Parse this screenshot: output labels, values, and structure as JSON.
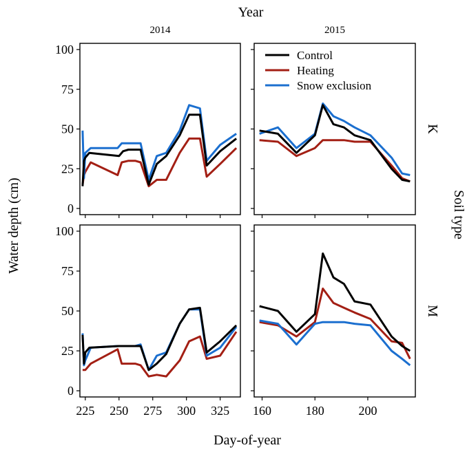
{
  "chart_data": {
    "type": "line",
    "title": "",
    "top_label": "Year",
    "right_label": "Soil type",
    "xlabel": "Day-of-year",
    "ylabel": "Water depth (cm)",
    "ylim": [
      0,
      100
    ],
    "yticks": [
      0,
      25,
      50,
      75,
      100
    ],
    "colors": {
      "Control": "#000000",
      "Heating": "#a31f14",
      "Snow exclusion": "#1b6fcf"
    },
    "legend": {
      "position": "top-right of 2015/K panel",
      "entries": [
        "Control",
        "Heating",
        "Snow exclusion"
      ]
    },
    "columns": [
      {
        "label": "2014",
        "xlim": [
          221,
          340
        ],
        "xticks": [
          225,
          250,
          275,
          300,
          325
        ]
      },
      {
        "label": "2015",
        "xlim": [
          157,
          218
        ],
        "xticks": [
          160,
          180,
          200
        ]
      }
    ],
    "rows": [
      {
        "label": "K"
      },
      {
        "label": "M"
      }
    ],
    "panels": [
      {
        "year": "2014",
        "soil": "K",
        "series": [
          {
            "name": "Control",
            "x": [
              223,
              224,
              225,
              228,
              250,
              253,
              257,
              262,
              266,
              272,
              278,
              285,
              295,
              302,
              310,
              315,
              325,
              337
            ],
            "y": [
              14,
              30,
              32,
              35,
              33,
              36,
              37,
              37,
              37,
              15,
              28,
              33,
              46,
              59,
              59,
              27,
              36,
              44
            ]
          },
          {
            "name": "Heating",
            "x": [
              223,
              224,
              225,
              229,
              249,
              252,
              257,
              262,
              266,
              272,
              278,
              285,
              295,
              302,
              310,
              315,
              325,
              337
            ],
            "y": [
              15,
              21,
              23,
              29,
              21,
              29,
              30,
              30,
              29,
              14,
              18,
              18,
              35,
              44,
              44,
              20,
              28,
              38
            ]
          },
          {
            "name": "Snow exclusion",
            "x": [
              223,
              224,
              225,
              229,
              249,
              252,
              257,
              262,
              266,
              272,
              278,
              285,
              295,
              302,
              310,
              315,
              325,
              337
            ],
            "y": [
              49,
              19,
              35,
              38,
              38,
              41,
              41,
              41,
              41,
              18,
              33,
              35,
              49,
              65,
              63,
              30,
              40,
              47
            ]
          }
        ]
      },
      {
        "year": "2015",
        "soil": "K",
        "series": [
          {
            "name": "Control",
            "x": [
              159,
              166,
              173,
              180,
              183,
              187,
              191,
              195,
              201,
              209,
              213,
              216
            ],
            "y": [
              49,
              47,
              35,
              46,
              65,
              53,
              51,
              46,
              43,
              25,
              18,
              17
            ]
          },
          {
            "name": "Heating",
            "x": [
              159,
              166,
              173,
              180,
              183,
              187,
              191,
              195,
              201,
              209,
              213,
              216
            ],
            "y": [
              43,
              42,
              33,
              38,
              43,
              43,
              43,
              42,
              42,
              27,
              19,
              17
            ]
          },
          {
            "name": "Snow exclusion",
            "x": [
              159,
              166,
              173,
              180,
              183,
              187,
              191,
              195,
              201,
              209,
              213,
              216
            ],
            "y": [
              47,
              51,
              38,
              47,
              66,
              58,
              55,
              51,
              46,
              32,
              22,
              21
            ]
          }
        ]
      },
      {
        "year": "2014",
        "soil": "M",
        "series": [
          {
            "name": "Control",
            "x": [
              223,
              224,
              225,
              228,
              250,
              253,
              257,
              262,
              266,
              272,
              278,
              285,
              295,
              302,
              310,
              315,
              325,
              337
            ],
            "y": [
              35,
              17,
              24,
              27,
              28,
              28,
              28,
              28,
              28,
              13,
              17,
              23,
              42,
              51,
              52,
              24,
              31,
              41
            ]
          },
          {
            "name": "Heating",
            "x": [
              223,
              224,
              225,
              229,
              249,
              252,
              257,
              262,
              266,
              272,
              278,
              285,
              295,
              302,
              310,
              315,
              325,
              337
            ],
            "y": [
              13,
              13,
              13,
              17,
              26,
              17,
              17,
              17,
              16,
              9,
              10,
              9,
              19,
              31,
              34,
              20,
              22,
              37
            ]
          },
          {
            "name": "Snow exclusion",
            "x": [
              223,
              224,
              225,
              229,
              249,
              252,
              257,
              262,
              266,
              272,
              278,
              285,
              295,
              302,
              310,
              315,
              325,
              337
            ],
            "y": [
              36,
              16,
              19,
              27,
              28,
              28,
              28,
              28,
              29,
              13,
              22,
              24,
              42,
              51,
              51,
              22,
              27,
              40
            ]
          }
        ]
      },
      {
        "year": "2015",
        "soil": "M",
        "series": [
          {
            "name": "Control",
            "x": [
              159,
              166,
              173,
              180,
              183,
              187,
              191,
              195,
              201,
              209,
              213,
              216
            ],
            "y": [
              53,
              50,
              37,
              48,
              86,
              71,
              67,
              56,
              54,
              34,
              28,
              25
            ]
          },
          {
            "name": "Heating",
            "x": [
              159,
              166,
              173,
              180,
              183,
              187,
              191,
              195,
              201,
              209,
              213,
              216
            ],
            "y": [
              43,
              41,
              34,
              43,
              64,
              55,
              52,
              49,
              45,
              31,
              30,
              20
            ]
          },
          {
            "name": "Snow exclusion",
            "x": [
              159,
              166,
              173,
              180,
              183,
              187,
              191,
              195,
              201,
              209,
              213,
              216
            ],
            "y": [
              44,
              42,
              29,
              42,
              43,
              43,
              43,
              42,
              41,
              25,
              20,
              16
            ]
          }
        ]
      }
    ]
  }
}
